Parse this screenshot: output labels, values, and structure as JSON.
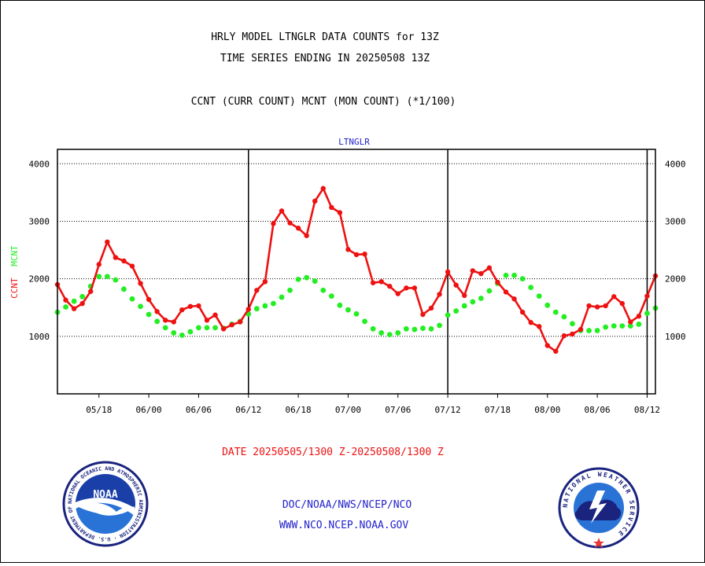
{
  "header": {
    "title_line1": "HRLY MODEL LTNGLR DATA COUNTS for 13Z",
    "title_line2": "TIME SERIES ENDING IN 20250508 13Z",
    "legend_line": "CCNT (CURR COUNT) MCNT (MON COUNT) (*1/100)"
  },
  "footer": {
    "date_range": "DATE 20250505/1300 Z-20250508/1300 Z",
    "org_line": "DOC/NOAA/NWS/NCEP/NCO",
    "website": "WWW.NCO.NCEP.NOAA.GOV"
  },
  "logos": {
    "noaa_text": "NOAA",
    "noaa_ring": "NATIONAL OCEANIC AND ATMOSPHERIC ADMINISTRATION · U.S. DEPARTMENT OF COMMERCE ·",
    "nws_ring": "NATIONAL WEATHER SERVICE"
  },
  "colors": {
    "ccnt": "#ee1111",
    "mcnt": "#22ee22",
    "title": "#000000",
    "date": "#ee1111",
    "footer": "#2222cc"
  },
  "chart_data": {
    "type": "line",
    "title": "LTNGLR",
    "ylabel_left": [
      "CCNT",
      "MCNT"
    ],
    "xlim": [
      0,
      72
    ],
    "ylim": [
      0,
      4250
    ],
    "y_ticks": [
      1000,
      2000,
      3000,
      4000
    ],
    "x_ticks": [
      {
        "x": 5,
        "label": "05/18"
      },
      {
        "x": 11,
        "label": "06/00"
      },
      {
        "x": 17,
        "label": "06/06"
      },
      {
        "x": 23,
        "label": "06/12"
      },
      {
        "x": 29,
        "label": "06/18"
      },
      {
        "x": 35,
        "label": "07/00"
      },
      {
        "x": 41,
        "label": "07/06"
      },
      {
        "x": 47,
        "label": "07/12"
      },
      {
        "x": 53,
        "label": "07/18"
      },
      {
        "x": 59,
        "label": "08/00"
      },
      {
        "x": 65,
        "label": "08/06"
      },
      {
        "x": 71,
        "label": "08/12"
      }
    ],
    "day_lines_x": [
      23,
      47,
      71
    ],
    "grid": true,
    "series": [
      {
        "name": "CCNT",
        "color": "#ee1111",
        "x": [
          0,
          1,
          2,
          3,
          4,
          5,
          6,
          7,
          8,
          9,
          10,
          11,
          12,
          13,
          14,
          15,
          16,
          17,
          18,
          19,
          20,
          21,
          22,
          23,
          24,
          25,
          26,
          27,
          28,
          29,
          30,
          31,
          32,
          33,
          34,
          35,
          36,
          37,
          38,
          39,
          40,
          41,
          42,
          43,
          44,
          45,
          46,
          47,
          48,
          49,
          50,
          51,
          52,
          53,
          54,
          55,
          56,
          57,
          58,
          59,
          60,
          61,
          62,
          63,
          64,
          65,
          66,
          67,
          68,
          69,
          70,
          71,
          72
        ],
        "values": [
          1900,
          1630,
          1480,
          1570,
          1780,
          2250,
          2640,
          2370,
          2310,
          2220,
          1920,
          1640,
          1430,
          1280,
          1250,
          1460,
          1520,
          1530,
          1280,
          1370,
          1130,
          1200,
          1250,
          1470,
          1800,
          1950,
          2960,
          3180,
          2970,
          2880,
          2750,
          3350,
          3570,
          3240,
          3150,
          2510,
          2420,
          2430,
          1930,
          1950,
          1870,
          1740,
          1840,
          1840,
          1380,
          1490,
          1730,
          2120,
          1890,
          1710,
          2140,
          2090,
          2190,
          1940,
          1770,
          1650,
          1420,
          1240,
          1170,
          840,
          740,
          1010,
          1040,
          1120,
          1530,
          1510,
          1530,
          1690,
          1570,
          1250,
          1350,
          1700,
          2050
        ]
      },
      {
        "name": "MCNT",
        "color": "#22ee22",
        "x": [
          0,
          1,
          2,
          3,
          4,
          5,
          6,
          7,
          8,
          9,
          10,
          11,
          12,
          13,
          14,
          15,
          16,
          17,
          18,
          19,
          20,
          21,
          22,
          23,
          24,
          25,
          26,
          27,
          28,
          29,
          30,
          31,
          32,
          33,
          34,
          35,
          36,
          37,
          38,
          39,
          40,
          41,
          42,
          43,
          44,
          45,
          46,
          47,
          48,
          49,
          50,
          51,
          52,
          53,
          54,
          55,
          56,
          57,
          58,
          59,
          60,
          61,
          62,
          63,
          64,
          65,
          66,
          67,
          68,
          69,
          70,
          71,
          72
        ],
        "values": [
          1420,
          1510,
          1610,
          1690,
          1870,
          2040,
          2040,
          1980,
          1820,
          1650,
          1520,
          1380,
          1260,
          1150,
          1060,
          1020,
          1080,
          1150,
          1150,
          1150,
          1140,
          1210,
          1260,
          1390,
          1480,
          1530,
          1570,
          1680,
          1800,
          1990,
          2020,
          1960,
          1800,
          1700,
          1540,
          1460,
          1390,
          1260,
          1130,
          1060,
          1030,
          1060,
          1130,
          1120,
          1140,
          1130,
          1190,
          1370,
          1440,
          1530,
          1600,
          1660,
          1790,
          1920,
          2060,
          2060,
          2000,
          1850,
          1700,
          1540,
          1420,
          1340,
          1220,
          1100,
          1100,
          1100,
          1160,
          1180,
          1180,
          1180,
          1210,
          1400,
          1490
        ]
      }
    ]
  }
}
